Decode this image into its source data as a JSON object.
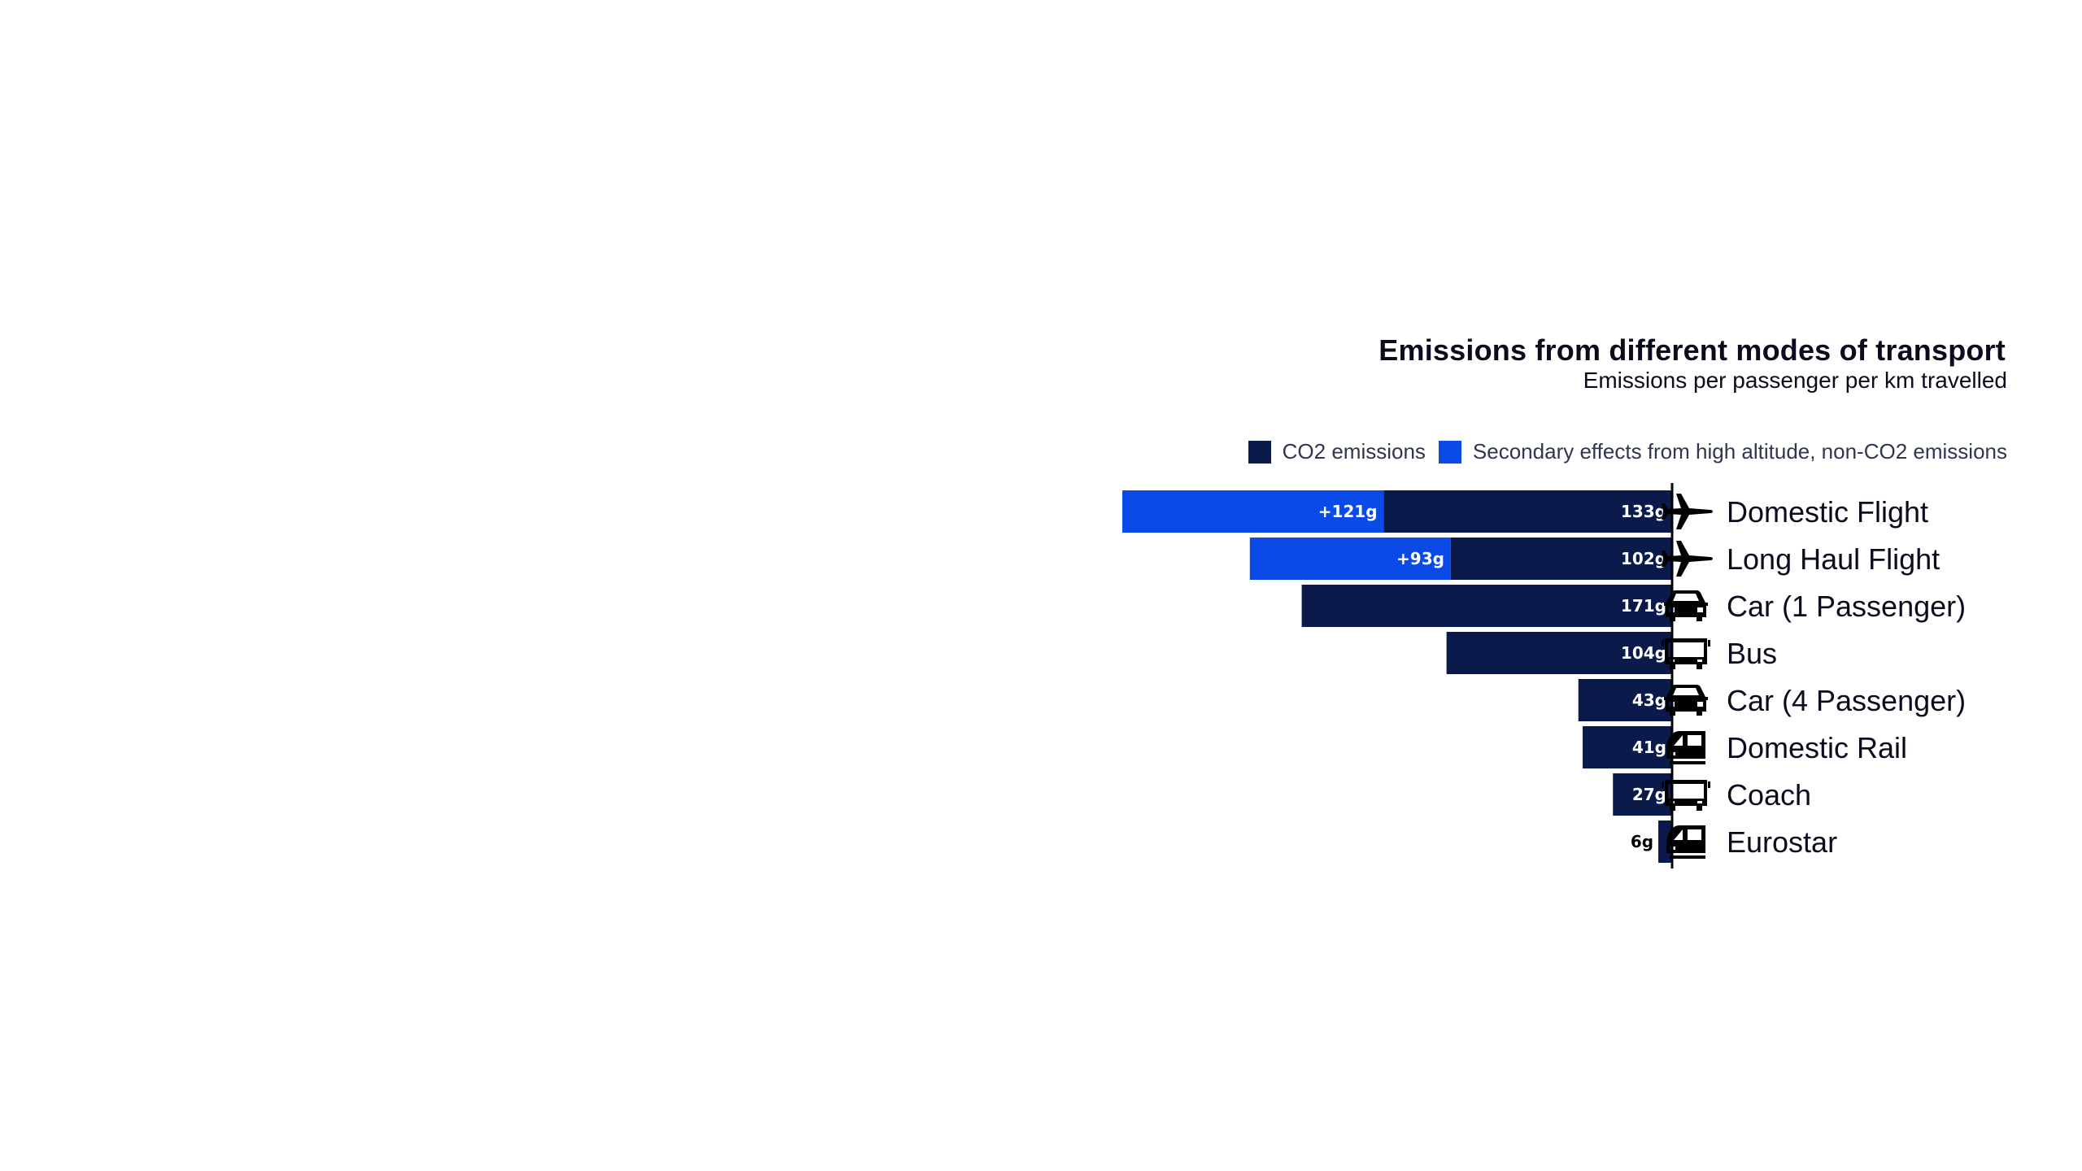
{
  "colors": {
    "co2": "#0a1a4a",
    "secondary": "#0a4ae6",
    "axis": "#000000",
    "label_light": "#ffffff",
    "label_dark": "#000000"
  },
  "chart_data": {
    "type": "bar",
    "orientation": "horizontal-stacked",
    "title": "Emissions from different modes of transport",
    "subtitle": "Emissions per passenger per km travelled",
    "legend_position": "top-right",
    "grid": false,
    "xlim": [
      0,
      254
    ],
    "categories": [
      "Domestic Flight",
      "Long Haul Flight",
      "Car (1 Passenger)",
      "Bus",
      "Car (4 Passenger)",
      "Domestic Rail",
      "Coach",
      "Eurostar"
    ],
    "icons": [
      "plane-icon",
      "plane-icon",
      "car-icon",
      "bus-icon",
      "car-icon",
      "train-icon",
      "bus-icon",
      "train-icon"
    ],
    "series": [
      {
        "name": "CO2 emissions",
        "color": "#0a1a4a",
        "values": [
          133,
          102,
          171,
          104,
          43,
          41,
          27,
          6
        ],
        "labels": [
          "133g",
          "102g",
          "171g",
          "104g",
          "43g",
          "41g",
          "27g",
          "6g"
        ]
      },
      {
        "name": "Secondary effects from high altitude, non-CO2 emissions",
        "color": "#0a4ae6",
        "values": [
          121,
          93,
          0,
          0,
          0,
          0,
          0,
          0
        ],
        "labels": [
          "+121g",
          "+93g",
          "",
          "",
          "",
          "",
          "",
          ""
        ]
      }
    ]
  }
}
